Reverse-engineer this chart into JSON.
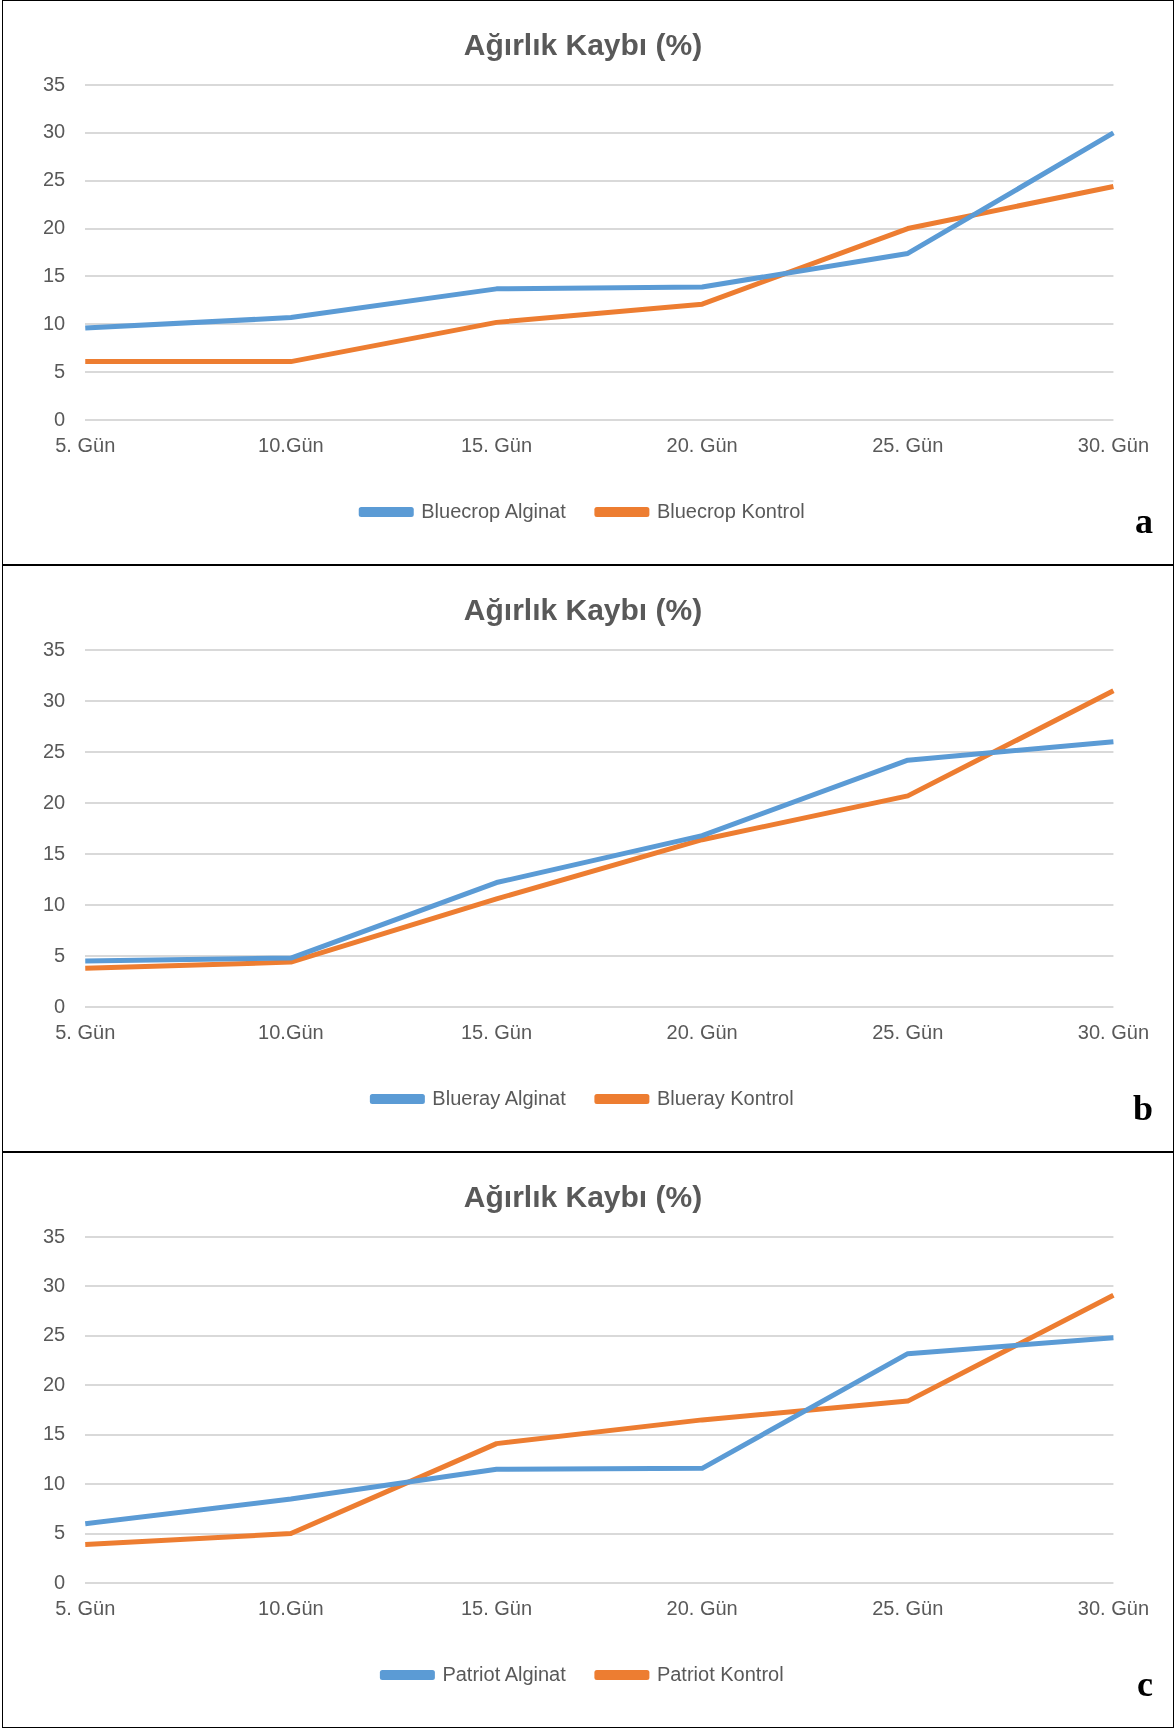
{
  "chart_data": [
    {
      "type": "line",
      "title": "Ağırlık Kaybı (%)",
      "categories": [
        "5. Gün",
        "10.Gün",
        "15. Gün",
        "20. Gün",
        "25. Gün",
        "30. Gün"
      ],
      "series": [
        {
          "name": "Bluecrop Alginat",
          "color": "#5b9bd5",
          "values": [
            9.6,
            10.7,
            13.7,
            13.9,
            17.4,
            30.0
          ]
        },
        {
          "name": "Bluecrop Kontrol",
          "color": "#ed7d31",
          "values": [
            6.1,
            6.1,
            10.2,
            12.1,
            20.0,
            24.4
          ]
        }
      ],
      "ylim": [
        0,
        35
      ],
      "yticks": [
        0,
        5,
        10,
        15,
        20,
        25,
        30,
        35
      ],
      "grid": "y",
      "legend": "bottom",
      "marker": "none",
      "annotations": [
        "a"
      ]
    },
    {
      "type": "line",
      "title": "Ağırlık Kaybı (%)",
      "categories": [
        "5. Gün",
        "10.Gün",
        "15. Gün",
        "20. Gün",
        "25. Gün",
        "30. Gün"
      ],
      "series": [
        {
          "name": "Blueray Alginat",
          "color": "#5b9bd5",
          "values": [
            4.5,
            4.8,
            12.2,
            16.8,
            24.2,
            26.0
          ]
        },
        {
          "name": "Blueray Kontrol",
          "color": "#ed7d31",
          "values": [
            3.8,
            4.4,
            10.6,
            16.4,
            20.7,
            31.0
          ]
        }
      ],
      "ylim": [
        0,
        35
      ],
      "yticks": [
        0,
        5,
        10,
        15,
        20,
        25,
        30,
        35
      ],
      "grid": "y",
      "legend": "bottom",
      "marker": "none",
      "annotations": [
        "b"
      ]
    },
    {
      "type": "line",
      "title": "Ağırlık Kaybı (%)",
      "categories": [
        "5. Gün",
        "10.Gün",
        "15. Gün",
        "20. Gün",
        "25. Gün",
        "30. Gün"
      ],
      "series": [
        {
          "name": "Patriot Alginat",
          "color": "#5b9bd5",
          "values": [
            6.0,
            8.5,
            11.5,
            11.6,
            23.2,
            24.8
          ]
        },
        {
          "name": "Patriot Kontrol",
          "color": "#ed7d31",
          "values": [
            3.9,
            5.0,
            14.1,
            16.5,
            18.4,
            29.1
          ]
        }
      ],
      "ylim": [
        0,
        35
      ],
      "yticks": [
        0,
        5,
        10,
        15,
        20,
        25,
        30,
        35
      ],
      "grid": "y",
      "legend": "bottom",
      "marker": "none",
      "annotations": [
        "c"
      ]
    }
  ]
}
